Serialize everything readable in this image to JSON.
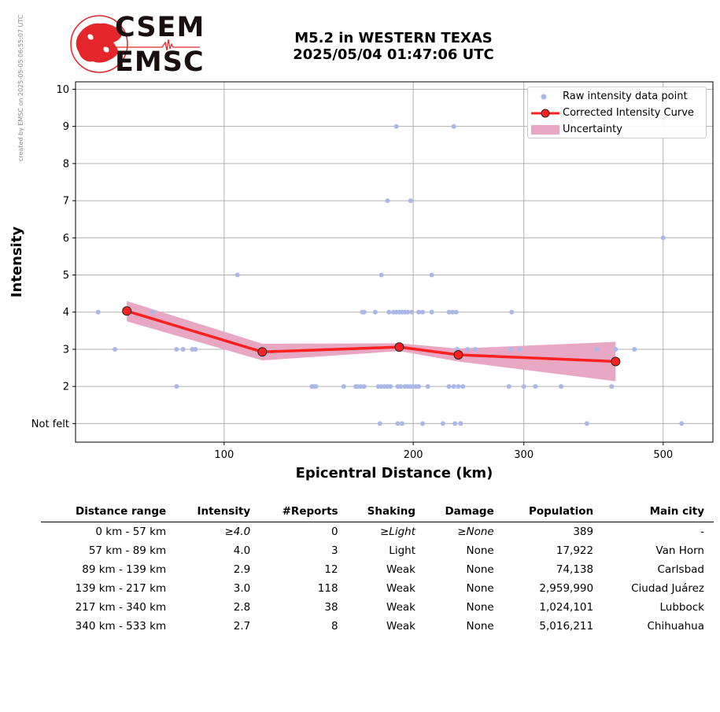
{
  "credit": "created by EMSC on 2025-05-05 06:55:07 UTC",
  "logo": {
    "line1": "CSEM",
    "line2": "EMSC",
    "color": "#e4262a"
  },
  "title": {
    "line1": "M5.2 in WESTERN TEXAS",
    "line2": "2025/05/04 01:47:06 UTC"
  },
  "chart_data": {
    "type": "scatter",
    "xlabel": "Epicentral Distance (km)",
    "ylabel": "Intensity",
    "x_scale": "log",
    "xlim": [
      58,
      600
    ],
    "ylim": [
      0.5,
      10.2
    ],
    "x_ticks": [
      100,
      200,
      300,
      500
    ],
    "y_ticks": [
      {
        "value": 1,
        "label": "Not felt"
      },
      {
        "value": 2,
        "label": "2"
      },
      {
        "value": 3,
        "label": "3"
      },
      {
        "value": 4,
        "label": "4"
      },
      {
        "value": 5,
        "label": "5"
      },
      {
        "value": 6,
        "label": "6"
      },
      {
        "value": 7,
        "label": "7"
      },
      {
        "value": 8,
        "label": "8"
      },
      {
        "value": 9,
        "label": "9"
      },
      {
        "value": 10,
        "label": "10"
      }
    ],
    "grid": true,
    "legend_position": "top-right",
    "colors": {
      "points": "#aab8e8",
      "curve": "#ff2020",
      "uncertainty": "#e8a8c4"
    },
    "series": [
      {
        "name": "Raw intensity data point",
        "points": [
          [
            63,
            4
          ],
          [
            67,
            3
          ],
          [
            77,
            4
          ],
          [
            84,
            3
          ],
          [
            86,
            3
          ],
          [
            89,
            3
          ],
          [
            90,
            3
          ],
          [
            84,
            2
          ],
          [
            105,
            5
          ],
          [
            188,
            9
          ],
          [
            232,
            9
          ],
          [
            182,
            7
          ],
          [
            198,
            7
          ],
          [
            214,
            5
          ],
          [
            178,
            5
          ],
          [
            500,
            6
          ],
          [
            166,
            4
          ],
          [
            167,
            4
          ],
          [
            174,
            4
          ],
          [
            183,
            4
          ],
          [
            186,
            4
          ],
          [
            188,
            4
          ],
          [
            190,
            4
          ],
          [
            192,
            4
          ],
          [
            194,
            4
          ],
          [
            196,
            4
          ],
          [
            199,
            4
          ],
          [
            204,
            4
          ],
          [
            207,
            4
          ],
          [
            214,
            4
          ],
          [
            228,
            4
          ],
          [
            231,
            4
          ],
          [
            234,
            4
          ],
          [
            287,
            4
          ],
          [
            295,
            3
          ],
          [
            286,
            3
          ],
          [
            420,
            3
          ],
          [
            450,
            3
          ],
          [
            392,
            3
          ],
          [
            235,
            3
          ],
          [
            244,
            3
          ],
          [
            251,
            3
          ],
          [
            138,
            2
          ],
          [
            139,
            2
          ],
          [
            140,
            2
          ],
          [
            155,
            2
          ],
          [
            162,
            2
          ],
          [
            163,
            2
          ],
          [
            165,
            2
          ],
          [
            167,
            2
          ],
          [
            176,
            2
          ],
          [
            178,
            2
          ],
          [
            180,
            2
          ],
          [
            182,
            2
          ],
          [
            184,
            2
          ],
          [
            189,
            2
          ],
          [
            191,
            2
          ],
          [
            194,
            2
          ],
          [
            196,
            2
          ],
          [
            198,
            2
          ],
          [
            200,
            2
          ],
          [
            202,
            2
          ],
          [
            204,
            2
          ],
          [
            211,
            2
          ],
          [
            228,
            2
          ],
          [
            232,
            2
          ],
          [
            236,
            2
          ],
          [
            240,
            2
          ],
          [
            284,
            2
          ],
          [
            300,
            2
          ],
          [
            313,
            2
          ],
          [
            344,
            2
          ],
          [
            414,
            2
          ],
          [
            177,
            1
          ],
          [
            189,
            1
          ],
          [
            192,
            1
          ],
          [
            207,
            1
          ],
          [
            223,
            1
          ],
          [
            233,
            1
          ],
          [
            238,
            1
          ],
          [
            378,
            1
          ],
          [
            535,
            1
          ]
        ]
      },
      {
        "name": "Corrected Intensity Curve",
        "points": [
          [
            70,
            4.03
          ],
          [
            115,
            2.93
          ],
          [
            190,
            3.06
          ],
          [
            236,
            2.85
          ],
          [
            420,
            2.67
          ]
        ]
      },
      {
        "name": "Uncertainty",
        "upper": [
          [
            70,
            4.3
          ],
          [
            115,
            3.15
          ],
          [
            190,
            3.16
          ],
          [
            236,
            3.02
          ],
          [
            420,
            3.2
          ]
        ],
        "lower": [
          [
            70,
            3.75
          ],
          [
            115,
            2.7
          ],
          [
            190,
            2.95
          ],
          [
            236,
            2.67
          ],
          [
            420,
            2.14
          ]
        ]
      }
    ]
  },
  "table": {
    "headers": [
      "Distance range",
      "Intensity",
      "#Reports",
      "Shaking",
      "Damage",
      "Population",
      "Main city"
    ],
    "rows": [
      [
        "0 km -   57 km",
        "≥4.0",
        "0",
        "≥Light",
        "≥None",
        "389",
        "-"
      ],
      [
        "57 km -   89 km",
        "4.0",
        "3",
        "Light",
        "None",
        "17,922",
        "Van Horn"
      ],
      [
        "89 km -  139 km",
        "2.9",
        "12",
        "Weak",
        "None",
        "74,138",
        "Carlsbad"
      ],
      [
        "139 km -  217 km",
        "3.0",
        "118",
        "Weak",
        "None",
        "2,959,990",
        "Ciudad Juárez"
      ],
      [
        "217 km -  340 km",
        "2.8",
        "38",
        "Weak",
        "None",
        "1,024,101",
        "Lubbock"
      ],
      [
        "340 km -  533 km",
        "2.7",
        "8",
        "Weak",
        "None",
        "5,016,211",
        "Chihuahua"
      ]
    ]
  }
}
